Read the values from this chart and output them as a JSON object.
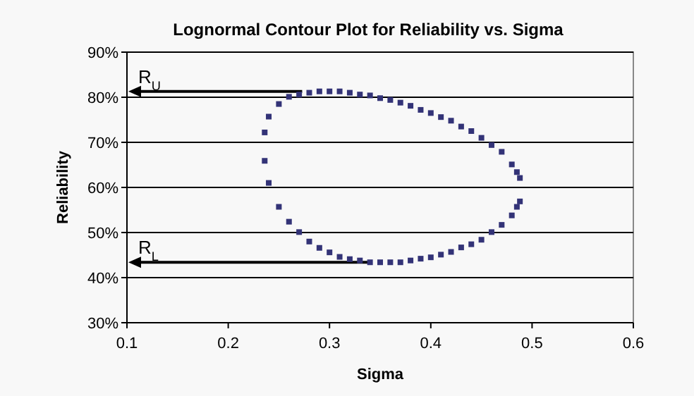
{
  "chart_data": {
    "type": "scatter",
    "title": "Lognormal Contour Plot for Reliability vs. Sigma",
    "xlabel": "Sigma",
    "ylabel": "Reliability",
    "xlim": [
      0.1,
      0.6
    ],
    "xticks": [
      0.1,
      0.2,
      0.3,
      0.4,
      0.5,
      0.6
    ],
    "ylim": [
      30,
      90
    ],
    "yticks": [
      {
        "value": 30,
        "label": "30%"
      },
      {
        "value": 40,
        "label": "40%"
      },
      {
        "value": 50,
        "label": "50%"
      },
      {
        "value": 60,
        "label": "60%"
      },
      {
        "value": 70,
        "label": "70%"
      },
      {
        "value": 80,
        "label": "80%"
      },
      {
        "value": 90,
        "label": "90%"
      }
    ],
    "grid": "y",
    "marker": "square",
    "series": [
      {
        "color": "#333377",
        "x": [
          0.236,
          0.236,
          0.24,
          0.24,
          0.25,
          0.26,
          0.27,
          0.28,
          0.29,
          0.3,
          0.31,
          0.32,
          0.33,
          0.34,
          0.35,
          0.36,
          0.37,
          0.38,
          0.39,
          0.4,
          0.41,
          0.42,
          0.43,
          0.44,
          0.45,
          0.46,
          0.47,
          0.48,
          0.485,
          0.488
        ],
        "values": [
          72.2,
          65.9,
          61.0,
          75.7,
          78.5,
          80.1,
          80.6,
          81.0,
          81.3,
          81.3,
          81.3,
          81.0,
          80.6,
          80.4,
          79.8,
          79.4,
          78.8,
          78.1,
          77.2,
          76.5,
          75.6,
          74.8,
          73.5,
          72.5,
          71.0,
          69.4,
          67.9,
          65.1,
          63.4,
          62.1
        ]
      },
      {
        "color": "#333377",
        "x": [
          0.25,
          0.26,
          0.27,
          0.28,
          0.29,
          0.3,
          0.31,
          0.32,
          0.33,
          0.34,
          0.35,
          0.36,
          0.37,
          0.38,
          0.39,
          0.4,
          0.41,
          0.42,
          0.43,
          0.44,
          0.45,
          0.46,
          0.47,
          0.48,
          0.485,
          0.488
        ],
        "values": [
          55.7,
          52.4,
          50.1,
          48.0,
          46.6,
          45.6,
          44.6,
          44.1,
          43.8,
          43.4,
          43.4,
          43.4,
          43.4,
          43.8,
          44.2,
          44.5,
          45.1,
          45.7,
          46.7,
          47.4,
          48.4,
          50.1,
          51.7,
          53.8,
          55.7,
          56.9
        ]
      }
    ],
    "annotations": [
      {
        "text": "R$_{U}$",
        "x": 0.273,
        "y": 81.3
      },
      {
        "text": "R$_{L}$",
        "x": 0.34,
        "y": 43.4
      }
    ]
  }
}
